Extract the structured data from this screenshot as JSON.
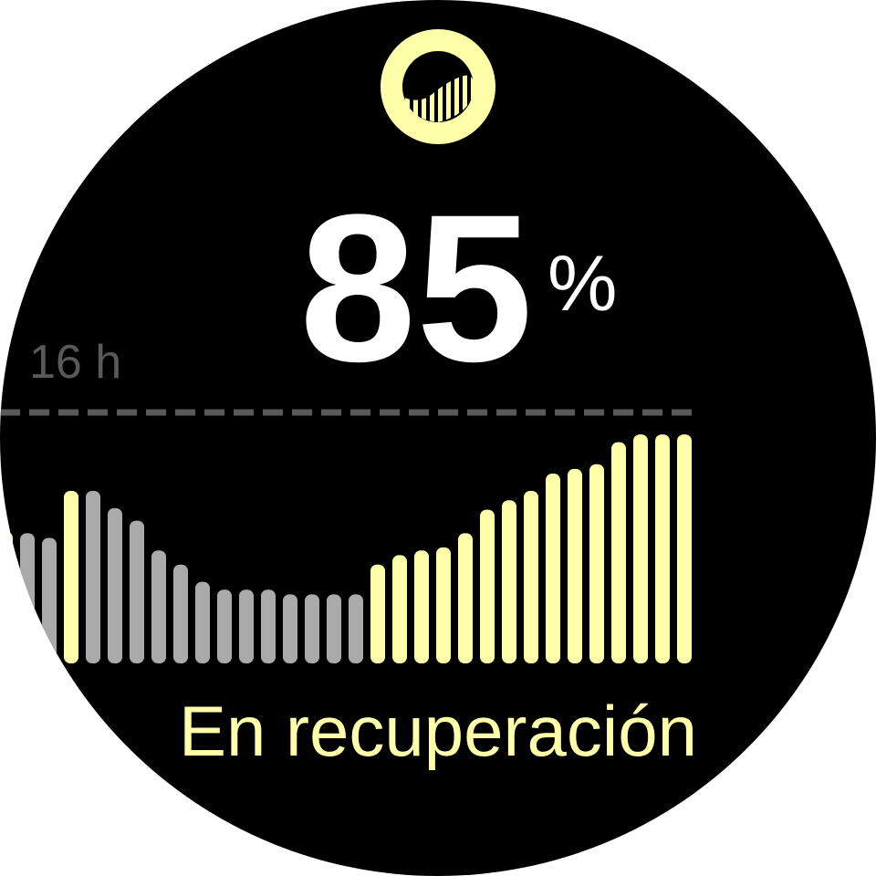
{
  "recovery": {
    "value": "85",
    "unit": "%",
    "status": "En recuperación",
    "icon": "recovery-gauge-icon"
  },
  "chart_data": {
    "type": "bar",
    "reference_line": {
      "value": 16,
      "label": "16 h",
      "style": "dashed"
    },
    "unit": "h",
    "ylim": [
      0,
      16
    ],
    "values": [
      8.4,
      8.3,
      8.0,
      11.0,
      11.0,
      9.9,
      9.1,
      7.2,
      6.3,
      5.2,
      4.7,
      4.7,
      4.7,
      4.4,
      4.4,
      4.4,
      4.4,
      6.3,
      6.9,
      7.2,
      7.4,
      8.3,
      9.8,
      10.4,
      11.0,
      12.1,
      12.4,
      12.7,
      14.1,
      14.6,
      14.6,
      14.6
    ],
    "highlight": [
      true,
      false,
      false,
      true,
      false,
      false,
      false,
      false,
      false,
      false,
      false,
      false,
      false,
      false,
      false,
      false,
      false,
      true,
      true,
      true,
      true,
      true,
      true,
      true,
      true,
      true,
      true,
      true,
      true,
      true,
      true,
      true
    ]
  },
  "colors": {
    "accent": "#FFFFAA",
    "inactive_bar": "#AAAAAA",
    "reference": "#595959",
    "background": "#000000",
    "value_text": "#FFFFFF"
  }
}
